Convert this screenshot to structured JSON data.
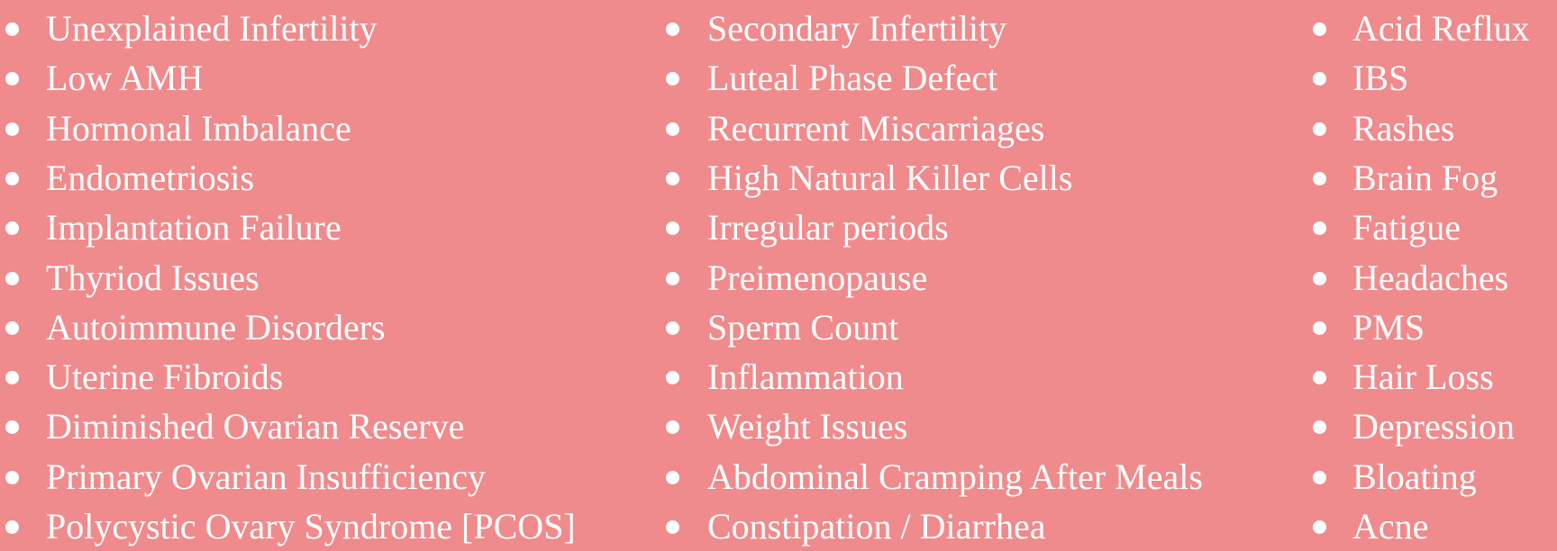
{
  "background_color": "#ef8b8d",
  "columns": [
    {
      "items": [
        "Unexplained Infertility",
        "Low AMH",
        "Hormonal Imbalance",
        "Endometriosis",
        "Implantation Failure",
        "Thyriod Issues",
        "Autoimmune Disorders",
        "Uterine Fibroids",
        "Diminished Ovarian Reserve",
        "Primary Ovarian Insufficiency",
        "Polycystic Ovary Syndrome [PCOS]"
      ]
    },
    {
      "items": [
        "Secondary Infertility",
        "Luteal Phase Defect",
        "Recurrent Miscarriages",
        "High Natural Killer Cells",
        "Irregular periods",
        "Preimenopause",
        "Sperm Count",
        "Inflammation",
        "Weight Issues",
        "Abdominal Cramping After Meals",
        "Constipation / Diarrhea"
      ]
    },
    {
      "items": [
        "Acid Reflux",
        "IBS",
        "Rashes",
        "Brain Fog",
        "Fatigue",
        "Headaches",
        "PMS",
        "Hair Loss",
        "Depression",
        "Bloating",
        "Acne"
      ]
    }
  ]
}
